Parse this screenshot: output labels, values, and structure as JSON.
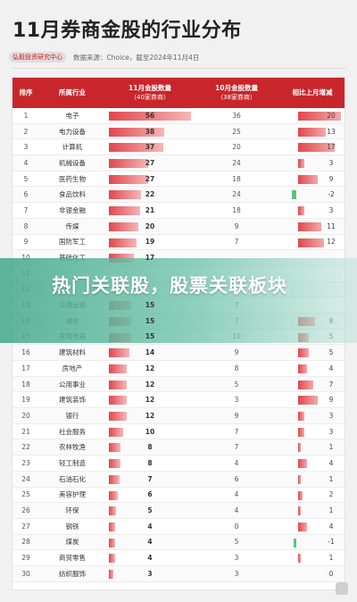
{
  "title": "11月券商金股的行业分布",
  "source": {
    "pill": "弘毅投资研究中心",
    "text": "数据来源：Choice，截至2024年11月4日"
  },
  "columns": {
    "rank": "排序",
    "industry": "所属行业",
    "nov": "11月金股数量",
    "nov_sub": "（40家券商）",
    "oct": "10月金股数量",
    "oct_sub": "（38家券商）",
    "chg": "相比上月增减"
  },
  "rows": [
    {
      "rank": "1",
      "industry": "电子",
      "nov": "56",
      "oct": "36",
      "chg": "20"
    },
    {
      "rank": "2",
      "industry": "电力设备",
      "nov": "38",
      "oct": "25",
      "chg": "13"
    },
    {
      "rank": "3",
      "industry": "计算机",
      "nov": "37",
      "oct": "20",
      "chg": "17"
    },
    {
      "rank": "4",
      "industry": "机械设备",
      "nov": "27",
      "oct": "24",
      "chg": "3"
    },
    {
      "rank": "5",
      "industry": "医药生物",
      "nov": "27",
      "oct": "18",
      "chg": "9"
    },
    {
      "rank": "6",
      "industry": "食品饮料",
      "nov": "22",
      "oct": "24",
      "chg": "-2"
    },
    {
      "rank": "7",
      "industry": "非银金融",
      "nov": "21",
      "oct": "18",
      "chg": "3"
    },
    {
      "rank": "8",
      "industry": "传媒",
      "nov": "20",
      "oct": "9",
      "chg": "11"
    },
    {
      "rank": "9",
      "industry": "国防军工",
      "nov": "19",
      "oct": "7",
      "chg": "12"
    },
    {
      "rank": "10",
      "industry": "基础化工",
      "nov": "17",
      "oct": "",
      "chg": ""
    },
    {
      "rank": "11",
      "industry": "",
      "nov": "",
      "oct": "",
      "chg": ""
    },
    {
      "rank": "12",
      "industry": "",
      "nov": "",
      "oct": "",
      "chg": ""
    },
    {
      "rank": "13",
      "industry": "交通运输",
      "nov": "15",
      "oct": "7",
      "chg": ""
    },
    {
      "rank": "14",
      "industry": "通信",
      "nov": "15",
      "oct": "7",
      "chg": "8"
    },
    {
      "rank": "15",
      "industry": "家用电器",
      "nov": "15",
      "oct": "10",
      "chg": "5"
    },
    {
      "rank": "16",
      "industry": "建筑材料",
      "nov": "14",
      "oct": "9",
      "chg": "5"
    },
    {
      "rank": "17",
      "industry": "房地产",
      "nov": "12",
      "oct": "8",
      "chg": "4"
    },
    {
      "rank": "18",
      "industry": "公用事业",
      "nov": "12",
      "oct": "5",
      "chg": "7"
    },
    {
      "rank": "19",
      "industry": "建筑装饰",
      "nov": "12",
      "oct": "3",
      "chg": "9"
    },
    {
      "rank": "20",
      "industry": "银行",
      "nov": "12",
      "oct": "9",
      "chg": "3"
    },
    {
      "rank": "21",
      "industry": "社会服务",
      "nov": "10",
      "oct": "7",
      "chg": "3"
    },
    {
      "rank": "22",
      "industry": "农林牧渔",
      "nov": "8",
      "oct": "7",
      "chg": "1"
    },
    {
      "rank": "23",
      "industry": "轻工制造",
      "nov": "8",
      "oct": "4",
      "chg": "4"
    },
    {
      "rank": "24",
      "industry": "石油石化",
      "nov": "7",
      "oct": "6",
      "chg": "1"
    },
    {
      "rank": "25",
      "industry": "美容护理",
      "nov": "6",
      "oct": "4",
      "chg": "2"
    },
    {
      "rank": "26",
      "industry": "环保",
      "nov": "5",
      "oct": "4",
      "chg": "1"
    },
    {
      "rank": "27",
      "industry": "钢铁",
      "nov": "4",
      "oct": "0",
      "chg": "4"
    },
    {
      "rank": "28",
      "industry": "煤炭",
      "nov": "4",
      "oct": "5",
      "chg": "-1"
    },
    {
      "rank": "29",
      "industry": "商贸零售",
      "nov": "4",
      "oct": "3",
      "chg": "1"
    },
    {
      "rank": "30",
      "industry": "纺织服饰",
      "nov": "3",
      "oct": "3",
      "chg": "0"
    }
  ],
  "banner": "热门关联股，股票关联板块",
  "colors": {
    "header": "#c8262b",
    "bar": "#e0474c",
    "negative": "#5ac47a",
    "banner": "#46aa8c"
  }
}
